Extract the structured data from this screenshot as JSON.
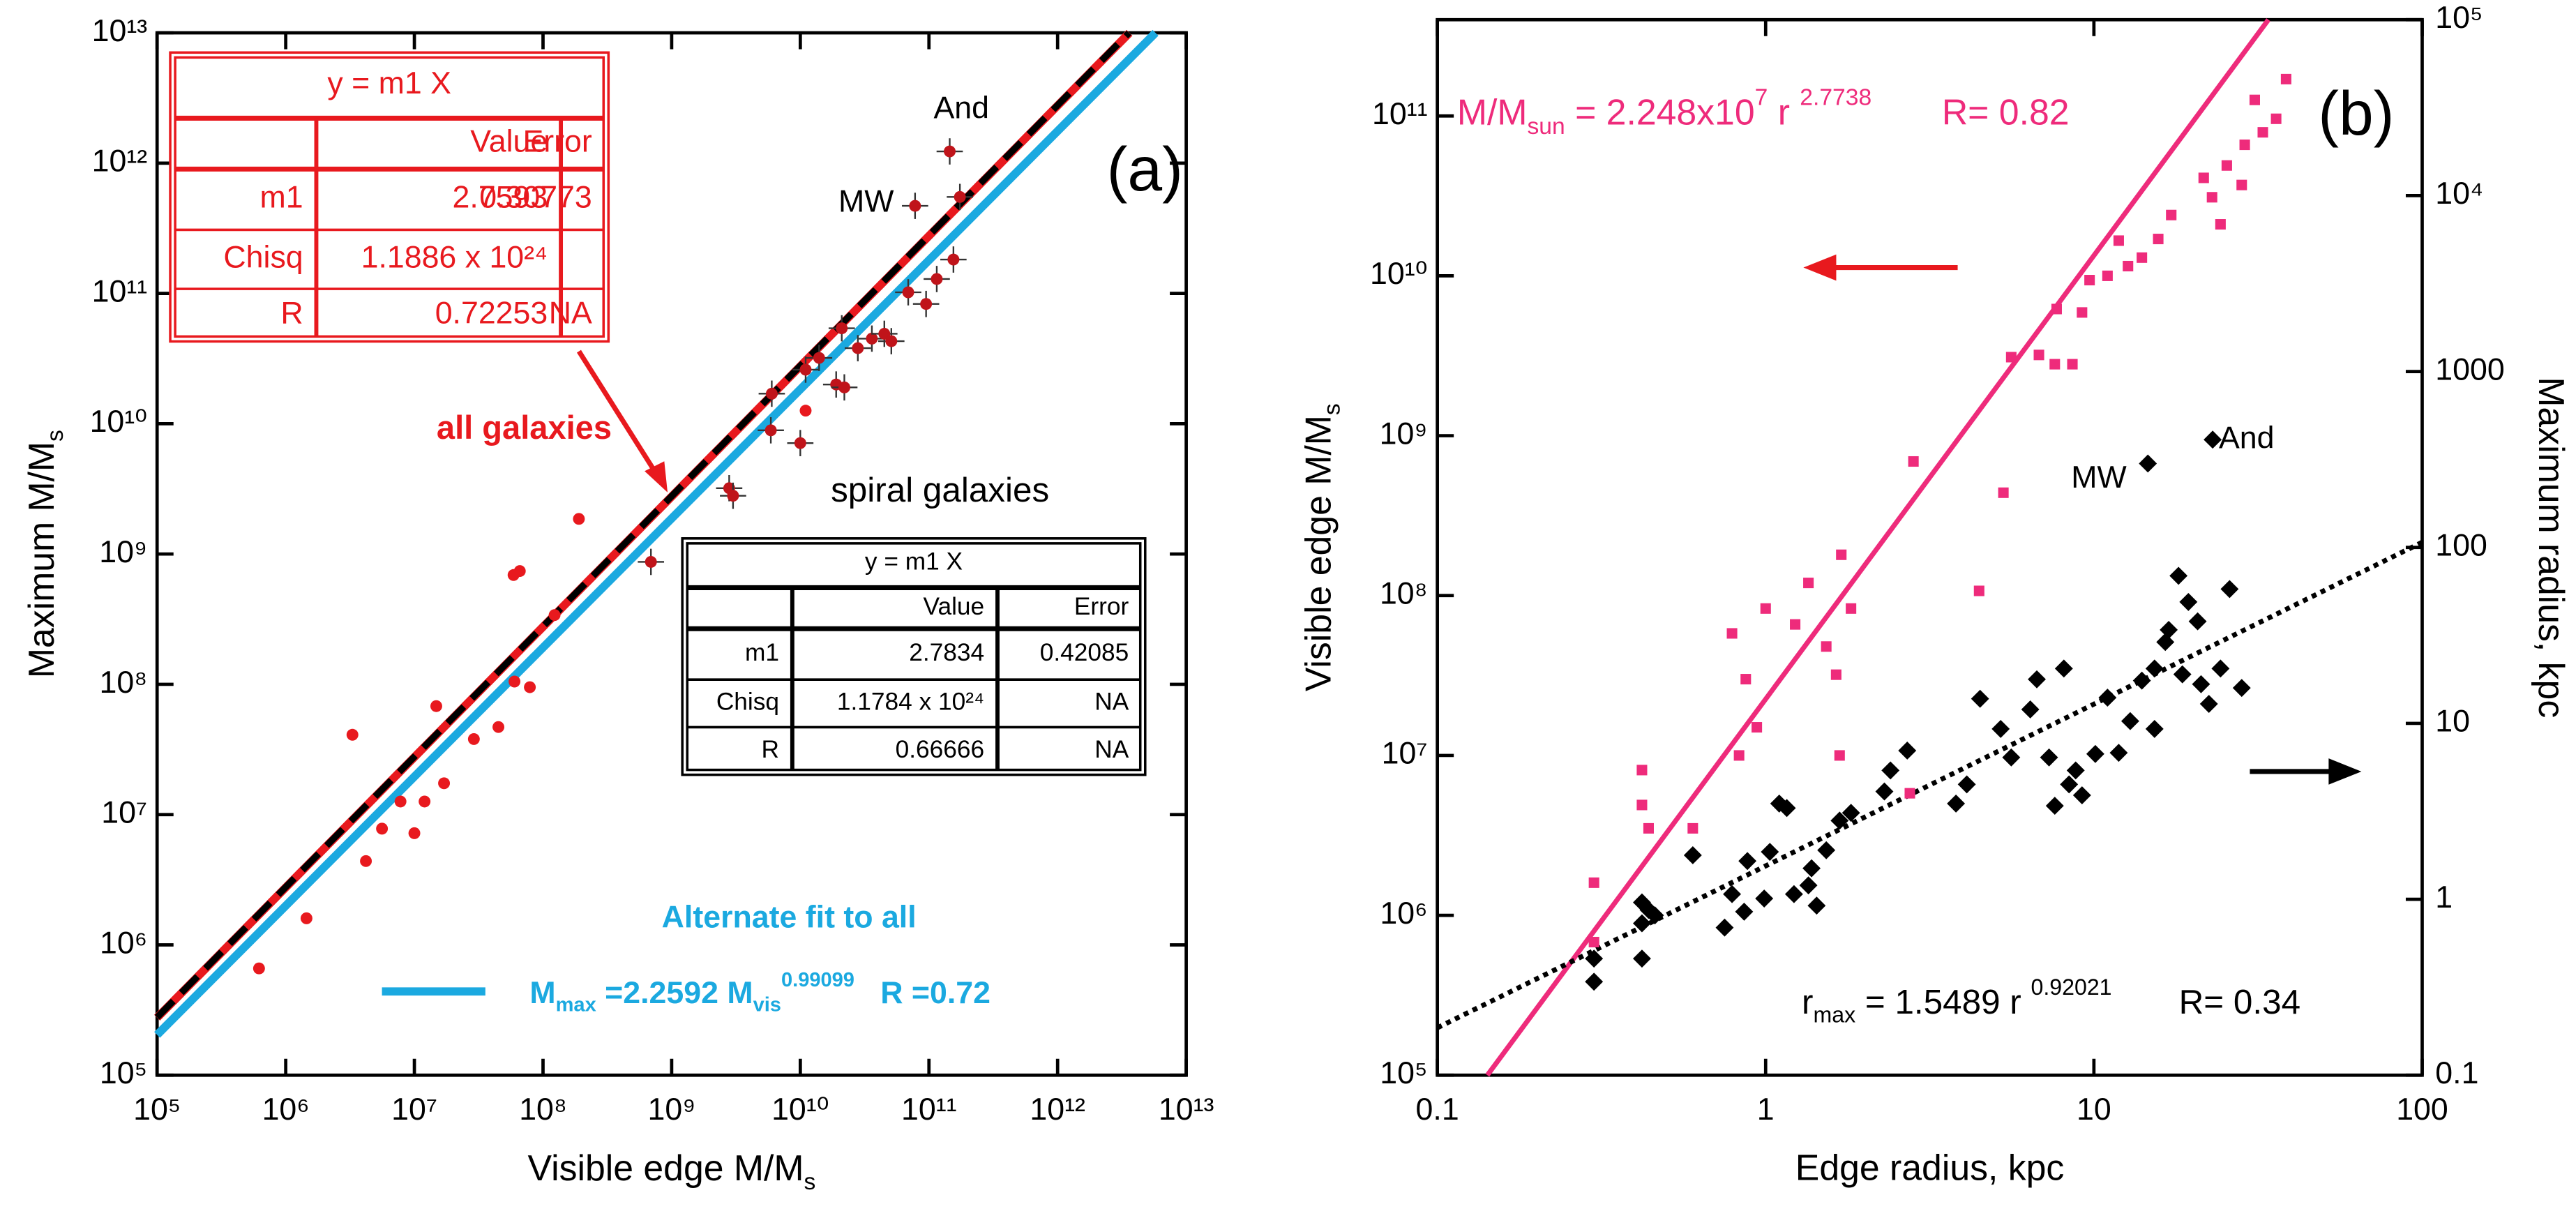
{
  "chart_data": [
    {
      "type": "scatter",
      "panel_label": "(a)",
      "xlabel": [
        {
          "text": "Visible edge M/M"
        },
        {
          "sub": "s"
        }
      ],
      "ylabel": [
        {
          "text": "Maximum M/M"
        },
        {
          "sub": "s"
        }
      ],
      "xscale": "log",
      "yscale": "log",
      "xlim": [
        100000.0,
        10000000000000.0
      ],
      "ylim": [
        100000.0,
        10000000000000.0
      ],
      "xticks": [
        {
          "value": 100000.0,
          "label": "10⁵"
        },
        {
          "value": 1000000.0,
          "label": "10⁶"
        },
        {
          "value": 10000000.0,
          "label": "10⁷"
        },
        {
          "value": 100000000.0,
          "label": "10⁸"
        },
        {
          "value": 1000000000.0,
          "label": "10⁹"
        },
        {
          "value": 10000000000.0,
          "label": "10¹⁰"
        },
        {
          "value": 100000000000.0,
          "label": "10¹¹"
        },
        {
          "value": 1000000000000.0,
          "label": "10¹²"
        },
        {
          "value": 10000000000000.0,
          "label": "10¹³"
        }
      ],
      "yticks": [
        {
          "value": 100000.0,
          "label": "10⁵"
        },
        {
          "value": 1000000.0,
          "label": "10⁶"
        },
        {
          "value": 10000000.0,
          "label": "10⁷"
        },
        {
          "value": 100000000.0,
          "label": "10⁸"
        },
        {
          "value": 1000000000.0,
          "label": "10⁹"
        },
        {
          "value": 10000000000.0,
          "label": "10¹⁰"
        },
        {
          "value": 100000000000.0,
          "label": "10¹¹"
        },
        {
          "value": 1000000000000.0,
          "label": "10¹²"
        },
        {
          "value": 10000000000000.0,
          "label": "10¹³"
        }
      ],
      "series": [
        {
          "name": "all galaxies",
          "color": "#e8191e",
          "marker": "circle",
          "x": [
            620000.0,
            1450000.0,
            3300000.0,
            4200000.0,
            5600000.0,
            7800000.0,
            10000000.0,
            12000000.0,
            14800000.0,
            17000000.0,
            29000000.0,
            45000000.0,
            60000000.0,
            59000000.0,
            66000000.0,
            79000000.0,
            123000000.0,
            190000000.0,
            11000000000.0
          ],
          "values": [
            660000.0,
            1600000.0,
            41000000.0,
            4400000.0,
            7800000.0,
            12600000.0,
            7200000.0,
            12600000.0,
            68000000.0,
            17400000.0,
            38000000.0,
            47000000.0,
            105000000.0,
            690000000.0,
            740000000.0,
            95000000.0,
            340000000.0,
            1860000000.0,
            12600000000.0
          ]
        },
        {
          "name": "spiral galaxies",
          "color": "#c0141a",
          "marker": "circle-cross",
          "x": [
            690000000.0,
            2800000000.0,
            3000000000.0,
            6000000000.0,
            5900000000.0,
            10000000000.0,
            11000000000.0,
            14000000000.0,
            19000000000.0,
            21000000000.0,
            22000000000.0,
            28000000000.0,
            36000000000.0,
            45000000000.0,
            51000000000.0,
            69000000000.0,
            78000000000.0,
            95000000000.0,
            115000000000.0,
            155000000000.0,
            174000000000.0,
            145000000000.0
          ],
          "values": [
            870000000.0,
            3200000000.0,
            2800000000.0,
            17000000000.0,
            8900000000.0,
            7100000000.0,
            26000000000.0,
            32000000000.0,
            20000000000.0,
            54000000000.0,
            19000000000.0,
            38000000000.0,
            45000000000.0,
            49000000000.0,
            43000000000.0,
            102000000000.0,
            470000000000.0,
            83000000000.0,
            129000000000.0,
            182000000000.0,
            550000000000.0,
            1230000000000.0
          ]
        }
      ],
      "fits": [
        {
          "color": "#e8191e",
          "dash": "solid",
          "x": [
            100000.0,
            3620000000000.0
          ],
          "values": [
            276000.0,
            10000000000000.0
          ]
        },
        {
          "color": "#000000",
          "dash": "dashed",
          "x": [
            100000.0,
            3590000000000.0
          ],
          "values": [
            278000.0,
            10000000000000.0
          ]
        },
        {
          "name": "Alternate fit to all",
          "color": "#1ba9e0",
          "dash": "solid",
          "x": [
            100000.0,
            5770000000000.0
          ],
          "values": [
            204000.0,
            10000000000000.0
          ]
        }
      ],
      "fit_label": [
        {
          "text": "M"
        },
        {
          "sub": "max"
        },
        {
          "text": " =2.2592 M"
        },
        {
          "sub": "vis"
        },
        {
          "sup": "0.99099"
        },
        {
          "text": "   R =0.72"
        }
      ],
      "annotations": [
        "And",
        "MW"
      ],
      "tables": [
        {
          "color": "#e8191e",
          "title": "y = m1 X",
          "columns": [
            "Value",
            "Error"
          ],
          "rows": [
            [
              "m1",
              "2.7593",
              "0.30773"
            ],
            [
              "Chisq",
              "1.1886 x 10²⁴"
            ],
            [
              "R",
              "0.72253",
              "NA"
            ]
          ]
        },
        {
          "color": "#000000",
          "title": "y = m1 X",
          "columns": [
            "Value",
            "Error"
          ],
          "rows": [
            [
              "m1",
              "2.7834",
              "0.42085"
            ],
            [
              "Chisq",
              "1.1784 x 10²⁴",
              "NA"
            ],
            [
              "R",
              "0.66666",
              "NA"
            ]
          ]
        }
      ]
    },
    {
      "type": "scatter",
      "panel_label": "(b)",
      "xlabel": "Edge radius, kpc",
      "ylabel": [
        {
          "text": "Visible edge M/M"
        },
        {
          "sub": "s"
        }
      ],
      "y2label": "Maximum radius, kpc",
      "xscale": "log",
      "yscale": "log",
      "y2scale": "log",
      "xlim": [
        0.1,
        100
      ],
      "ylim": [
        100000.0,
        400000000000.0
      ],
      "y2lim": [
        0.1,
        100000.0
      ],
      "xticks": [
        0.1,
        1,
        10,
        100
      ],
      "yticks": [
        {
          "value": 100000.0,
          "label": "10⁵"
        },
        {
          "value": 1000000.0,
          "label": "10⁶"
        },
        {
          "value": 10000000.0,
          "label": "10⁷"
        },
        {
          "value": 100000000.0,
          "label": "10⁸"
        },
        {
          "value": 1000000000.0,
          "label": "10⁹"
        },
        {
          "value": 10000000000.0,
          "label": "10¹⁰"
        },
        {
          "value": 100000000000.0,
          "label": "10¹¹"
        }
      ],
      "y2ticks": [
        0.1,
        1,
        10,
        100,
        1000,
        {
          "value": 10000.0,
          "label": "10⁴"
        },
        {
          "value": 100000.0,
          "label": "10⁵"
        }
      ],
      "series": [
        {
          "color": "#ee2b7b",
          "marker": "square",
          "x": [
            0.3,
            0.3,
            0.42,
            0.42,
            0.44,
            0.6,
            0.79,
            0.83,
            0.87,
            0.94,
            1.0,
            1.23,
            1.35,
            1.53,
            1.64,
            1.68,
            1.82,
            1.7,
            2.75,
            2.82,
            4.47,
            5.3,
            5.6,
            6.8,
            7.6,
            8.6,
            7.7,
            9.2,
            9.7,
            11.0,
            12.7,
            14.0,
            11.9,
            15.7,
            17.2,
            21.6,
            22.9,
            24.3,
            25.4,
            28.2,
            28.8,
            30.9,
            32.7,
            35.9,
            38.5
          ],
          "values": [
            680000.0,
            1600000.0,
            8100000.0,
            4900000.0,
            3500000.0,
            3500000.0,
            58000000.0,
            10000000.0,
            30000000.0,
            15000000.0,
            83000000.0,
            66000000.0,
            120000000.0,
            48000000.0,
            32000000.0,
            10000000.0,
            83000000.0,
            180000000.0,
            5800000.0,
            690000000.0,
            107000000.0,
            440000000.0,
            3100000000.0,
            3200000000.0,
            2800000000.0,
            2800000000.0,
            6200000000.0,
            5900000000.0,
            9400000000.0,
            10000000000.0,
            11500000000.0,
            13000000000.0,
            16600000000.0,
            17000000000.0,
            24000000000.0,
            41000000000.0,
            31000000000.0,
            21000000000.0,
            49000000000.0,
            37000000000.0,
            66000000000.0,
            126000000000.0,
            79000000000.0,
            96000000000.0,
            170000000000.0
          ]
        },
        {
          "color": "#000000",
          "marker": "diamond",
          "axis": "y2",
          "x": [
            0.3,
            0.3,
            0.42,
            0.42,
            0.42,
            0.44,
            0.46,
            0.6,
            0.75,
            0.79,
            0.86,
            0.99,
            1.03,
            0.88,
            1.1,
            1.16,
            1.22,
            1.35,
            1.38,
            1.43,
            1.53,
            1.68,
            1.82,
            2.3,
            2.4,
            2.7,
            3.8,
            4.1,
            4.5,
            5.2,
            5.6,
            6.4,
            6.7,
            7.3,
            7.6,
            8.1,
            8.4,
            8.8,
            9.2,
            10.1,
            11.0,
            11.9,
            12.9,
            14.0,
            15.3,
            16.5,
            16.9,
            18.1,
            19.4,
            20.7,
            21.2,
            22.4,
            24.3,
            25.9,
            28.2,
            18.6,
            15.3,
            14.6,
            23.0
          ],
          "values": [
            0.34,
            0.46,
            0.46,
            0.73,
            0.96,
            0.87,
            0.81,
            1.78,
            0.69,
            1.07,
            0.85,
            1.01,
            1.86,
            1.65,
            3.5,
            3.3,
            1.07,
            1.2,
            1.5,
            0.92,
            1.9,
            2.8,
            3.1,
            4.1,
            5.4,
            7.0,
            3.5,
            4.5,
            13.8,
            9.3,
            6.4,
            12,
            17.8,
            6.4,
            3.4,
            20.5,
            4.5,
            5.4,
            3.9,
            6.7,
            14,
            6.8,
            10.3,
            17.5,
            20.5,
            29,
            34,
            69,
            49,
            38,
            16.7,
            12.9,
            20.5,
            58,
            15.9,
            19,
            9.3,
            300,
            410
          ]
        }
      ],
      "fits": [
        {
          "color": "#ee2b7b",
          "dash": "solid",
          "x": [
            0.142,
            34
          ],
          "values": [
            100000.0,
            400000000000.0
          ]
        },
        {
          "color": "#000000",
          "dash": "dotted",
          "axis": "y2",
          "x": [
            0.1,
            100
          ],
          "values": [
            0.186,
            107
          ]
        }
      ],
      "fit_labels": [
        [
          {
            "text": "M/M"
          },
          {
            "sub": "sun"
          },
          {
            "text": " = 2.248x10"
          },
          {
            "sup": "7"
          },
          {
            "text": " r "
          },
          {
            "sup": "2.7738"
          },
          {
            "text": "       R= 0.82"
          }
        ],
        [
          {
            "text": "r"
          },
          {
            "sub": "max"
          },
          {
            "text": " = 1.5489 r "
          },
          {
            "sup": "0.92021"
          },
          {
            "text": "       R= 0.34"
          }
        ]
      ],
      "annotations": [
        "MW",
        "And"
      ]
    }
  ]
}
